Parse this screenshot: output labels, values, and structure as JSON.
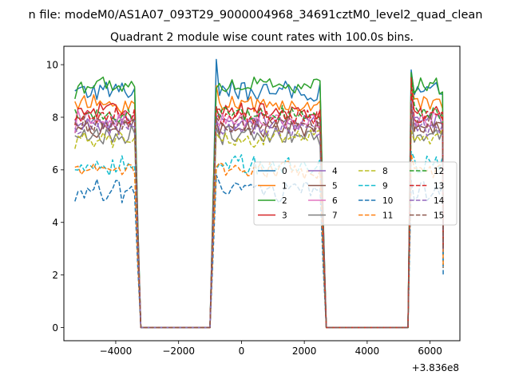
{
  "chart_data": {
    "type": "line",
    "suptitle": "n file: modeM0/AS1A07_093T29_9000004968_34691cztM0_level2_quad_clean",
    "title": "Quadrant 2 module wise count rates with 100.0s bins.",
    "xlabel": "",
    "ylabel": "",
    "x_offset_label": "+3.836e8",
    "xlim": [
      -5650,
      6950
    ],
    "ylim": [
      -0.5,
      10.7
    ],
    "xticks": [
      -4000,
      -2000,
      0,
      2000,
      4000,
      6000
    ],
    "xtick_labels": [
      "−4000",
      "−2000",
      "0",
      "2000",
      "4000",
      "6000"
    ],
    "yticks": [
      0,
      2,
      4,
      6,
      8,
      10
    ],
    "ytick_labels": [
      "0",
      "2",
      "4",
      "6",
      "8",
      "10"
    ],
    "grid": false,
    "legend_position": "center-right",
    "legend_columns": 4,
    "segments": [
      {
        "start": -5300,
        "end": -3400
      },
      {
        "start": -800,
        "end": 2500
      },
      {
        "start": 5400,
        "end": 6400
      }
    ],
    "gaps": [
      {
        "start": -3200,
        "end": -1000
      },
      {
        "start": 2700,
        "end": 5300
      }
    ],
    "series": [
      {
        "name": "0",
        "color": "#1f77b4",
        "dash": "solid",
        "level": 9.0,
        "spread": 0.35,
        "seg_start": [
          9.0,
          10.2,
          9.8
        ]
      },
      {
        "name": "1",
        "color": "#ff7f0e",
        "dash": "solid",
        "level": 8.5,
        "spread": 0.3,
        "seg_start": [
          8.6,
          9.2,
          9.2
        ]
      },
      {
        "name": "2",
        "color": "#2ca02c",
        "dash": "solid",
        "level": 9.2,
        "spread": 0.3,
        "seg_start": [
          8.7,
          9.1,
          9.7
        ]
      },
      {
        "name": "3",
        "color": "#d62728",
        "dash": "solid",
        "level": 8.2,
        "spread": 0.3,
        "seg_start": [
          7.7,
          8.3,
          8.9
        ]
      },
      {
        "name": "4",
        "color": "#9467bd",
        "dash": "solid",
        "level": 7.8,
        "spread": 0.3,
        "seg_start": [
          7.9,
          8.0,
          8.4
        ]
      },
      {
        "name": "5",
        "color": "#8c564b",
        "dash": "solid",
        "level": 7.6,
        "spread": 0.3,
        "seg_start": [
          7.4,
          7.9,
          8.6
        ]
      },
      {
        "name": "6",
        "color": "#e377c2",
        "dash": "solid",
        "level": 7.9,
        "spread": 0.3,
        "seg_start": [
          7.4,
          7.9,
          8.4
        ]
      },
      {
        "name": "7",
        "color": "#7f7f7f",
        "dash": "solid",
        "level": 7.3,
        "spread": 0.3,
        "seg_start": [
          7.3,
          7.6,
          8.0
        ]
      },
      {
        "name": "8",
        "color": "#bcbd22",
        "dash": "dashed",
        "level": 7.2,
        "spread": 0.3,
        "seg_start": [
          6.8,
          7.4,
          7.5
        ]
      },
      {
        "name": "9",
        "color": "#17becf",
        "dash": "dashed",
        "level": 6.2,
        "spread": 0.35,
        "seg_start": [
          6.0,
          6.0,
          6.7
        ]
      },
      {
        "name": "10",
        "color": "#1f77b4",
        "dash": "dashed",
        "level": 5.2,
        "spread": 0.4,
        "seg_start": [
          4.8,
          5.8,
          5.6
        ]
      },
      {
        "name": "11",
        "color": "#ff7f0e",
        "dash": "dashed",
        "level": 6.0,
        "spread": 0.3,
        "seg_start": [
          6.1,
          6.1,
          6.6
        ]
      },
      {
        "name": "12",
        "color": "#2ca02c",
        "dash": "dashed",
        "level": 8.1,
        "spread": 0.3,
        "seg_start": [
          8.3,
          8.4,
          9.5
        ]
      },
      {
        "name": "13",
        "color": "#d62728",
        "dash": "dashed",
        "level": 8.0,
        "spread": 0.3,
        "seg_start": [
          7.9,
          8.4,
          9.5
        ]
      },
      {
        "name": "14",
        "color": "#9467bd",
        "dash": "dashed",
        "level": 7.6,
        "spread": 0.3,
        "seg_start": [
          7.6,
          7.9,
          8.6
        ]
      },
      {
        "name": "15",
        "color": "#8c564b",
        "dash": "dashed",
        "level": 7.7,
        "spread": 0.3,
        "seg_start": [
          7.8,
          8.0,
          8.5
        ]
      }
    ]
  }
}
